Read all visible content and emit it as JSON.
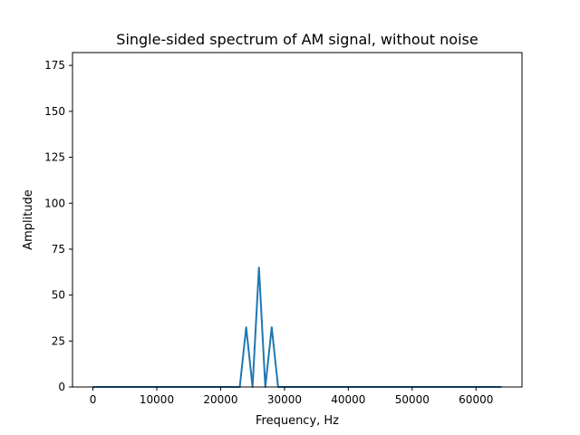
{
  "chart_data": {
    "type": "line",
    "title": "Single-sided spectrum of AM signal, without noise",
    "xlabel": "Frequency, Hz",
    "ylabel": "Amplitude",
    "xlim": [
      -3200,
      67200
    ],
    "ylim": [
      0,
      182
    ],
    "xticks": [
      0,
      10000,
      20000,
      30000,
      40000,
      50000,
      60000
    ],
    "yticks": [
      0,
      25,
      50,
      75,
      100,
      125,
      150,
      175
    ],
    "grid": false,
    "series": [
      {
        "color": "#1f77b4",
        "x": [
          0,
          23000,
          24000,
          25000,
          26000,
          27000,
          28000,
          29000,
          64000
        ],
        "y": [
          0,
          0,
          32.5,
          0,
          65,
          0,
          32.5,
          0,
          0
        ]
      }
    ]
  }
}
